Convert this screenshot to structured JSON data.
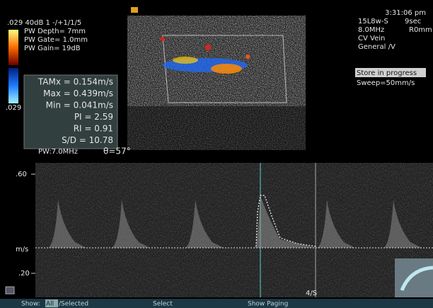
{
  "status": {
    "time": "3:31:06 pm"
  },
  "left_panel": {
    "lines": [
      ".029 40dB  1 -/+1/1/5",
      "PW Depth=  7mm",
      "PW Gate= 1.0mm",
      "PW Gain= 19dB"
    ],
    "scale_low": ".029"
  },
  "measurements": [
    "TAMx = 0.154m/s",
    "Max = 0.439m/s",
    "Min = 0.041m/s",
    "PI = 2.59",
    "RI = 0.91",
    "S/D = 10.78"
  ],
  "beam": {
    "frequency": "PW:7.0MHz",
    "angle": "θ=57°"
  },
  "right_panel": {
    "lines": [
      "15L8w-S",
      "8.0MHz",
      "CV Vein",
      "General /V"
    ],
    "duration": "9sec",
    "range": "R0mm",
    "status": "Store in progress",
    "sweep": "Sweep=50mm/s"
  },
  "doppler": {
    "axis_labels": [
      ".60",
      "m/s",
      ".20"
    ],
    "marker": "4/S"
  },
  "footer": {
    "show": "Show:",
    "all": "All",
    "selected": "/Selected",
    "select": "Select",
    "paging": "Show Paging"
  }
}
